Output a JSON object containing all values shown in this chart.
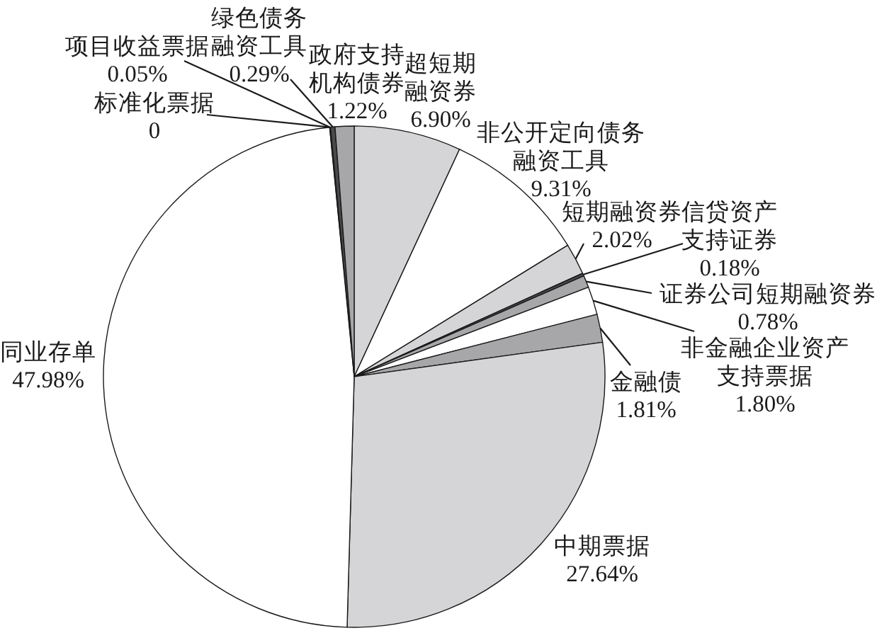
{
  "chart_data": {
    "type": "pie",
    "categories": [
      "超短期融资券",
      "非公开定向债务融资工具",
      "短期融资券",
      "信贷资产支持证券",
      "证券公司短期融资券",
      "非金融企业资产支持票据",
      "金融债",
      "中期票据",
      "同业存单",
      "标准化票据",
      "项目收益票据",
      "绿色债务融资工具",
      "政府支持机构债券"
    ],
    "values": [
      6.9,
      9.31,
      2.02,
      0.18,
      0.78,
      1.8,
      1.81,
      27.64,
      47.98,
      0,
      0.05,
      0.29,
      1.22
    ],
    "colors": [
      "#d5d5d7",
      "#ffffff",
      "#d5d5d7",
      "#4a4a4c",
      "#a7a7a9",
      "#ffffff",
      "#a7a7a9",
      "#d5d5d7",
      "#ffffff",
      null,
      "#4a4a4c",
      "#4a4a4c",
      "#a7a7a9"
    ],
    "value_labels": [
      "6.90%",
      "9.31%",
      "2.02%",
      "0.18%",
      "0.78%",
      "1.80%",
      "1.81%",
      "27.64%",
      "47.98%",
      "0",
      "0.05%",
      "0.29%",
      "1.22%"
    ]
  }
}
